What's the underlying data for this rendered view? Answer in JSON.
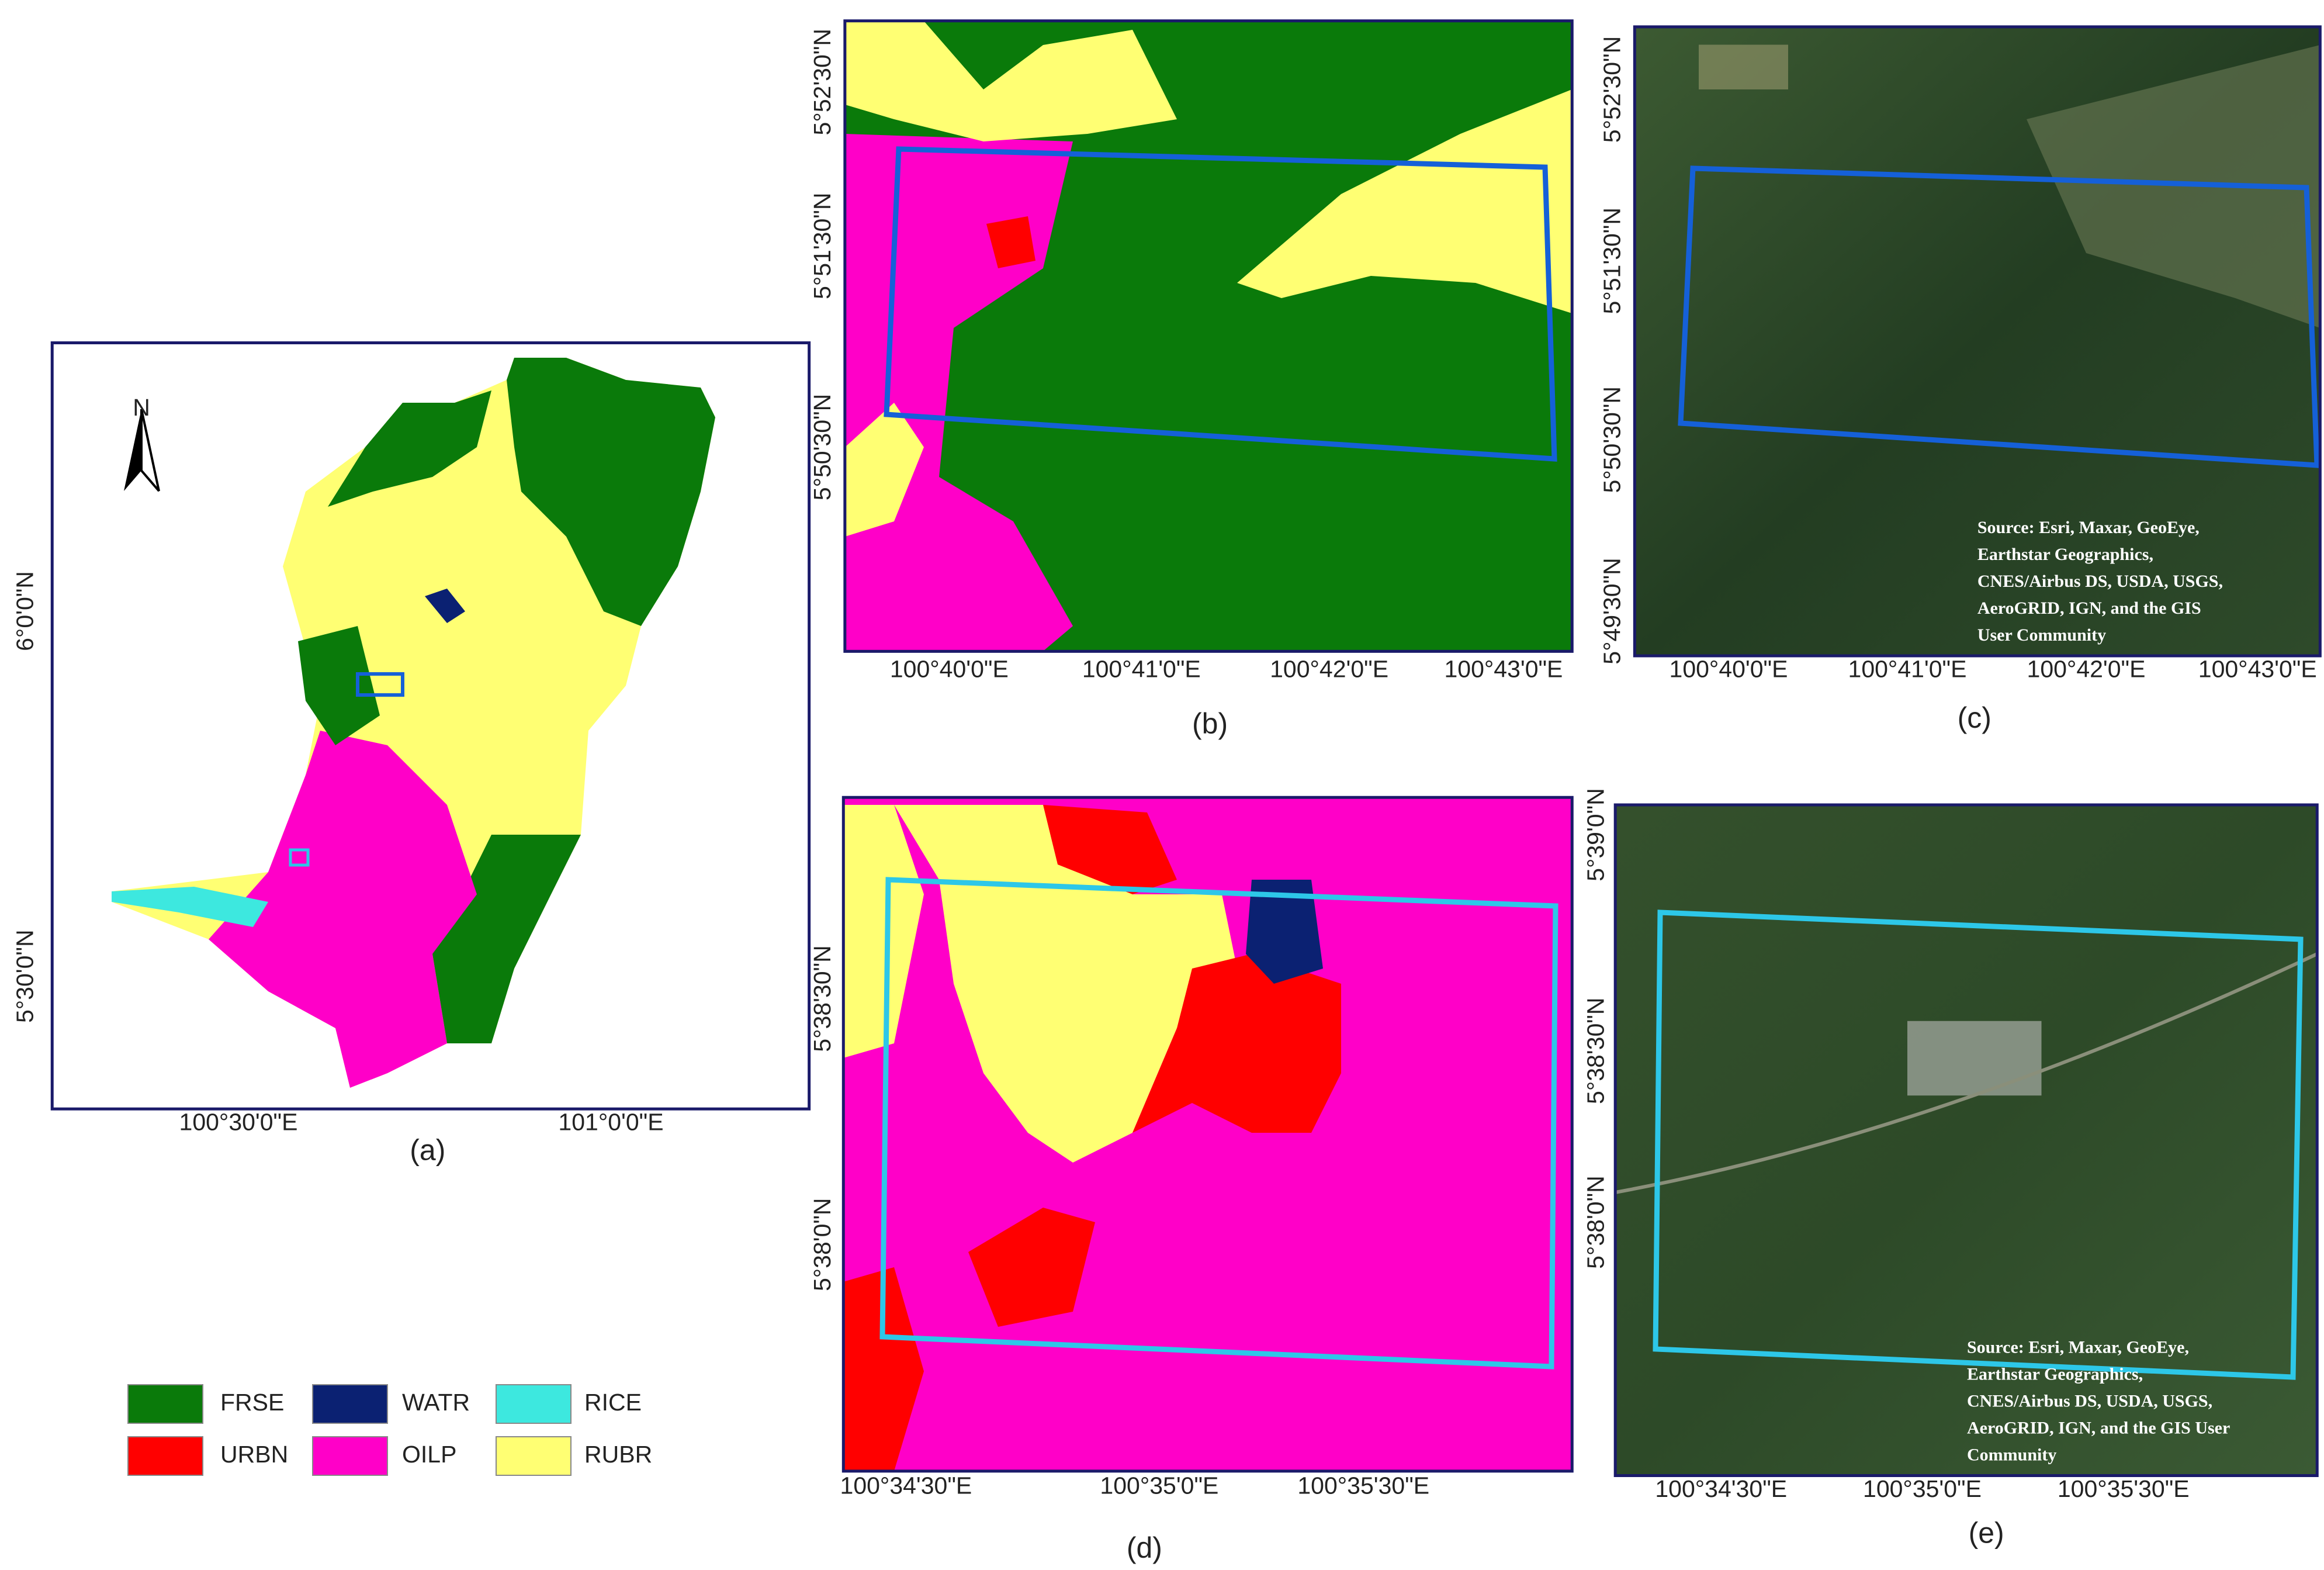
{
  "panels": [
    {
      "label": "(a)",
      "north": "N",
      "x_ticks": [
        "100°30'0\"E",
        "101°0'0\"E"
      ],
      "y_ticks": [
        "6°0'0\"N",
        "5°30'0\"N"
      ]
    },
    {
      "label": "(b)",
      "x_ticks": [
        "100°40'0\"E",
        "100°41'0\"E",
        "100°42'0\"E",
        "100°43'0\"E"
      ],
      "y_ticks": [
        "5°52'30\"N",
        "5°51'30\"N",
        "5°50'30\"N"
      ]
    },
    {
      "label": "(c)",
      "x_ticks": [
        "100°40'0\"E",
        "100°41'0\"E",
        "100°42'0\"E",
        "100°43'0\"E"
      ],
      "y_ticks": [
        "5°52'30\"N",
        "5°51'30\"N",
        "5°50'30\"N",
        "5°49'30\"N"
      ],
      "attribution": [
        "Source: Esri, Maxar, GeoEye,",
        "Earthstar Geographics,",
        "CNES/Airbus DS, USDA, USGS,",
        "AeroGRID, IGN, and the GIS",
        "User Community"
      ]
    },
    {
      "label": "(d)",
      "x_ticks": [
        "100°34'30\"E",
        "100°35'0\"E",
        "100°35'30\"E"
      ],
      "y_ticks": [
        "5°38'30\"N",
        "5°38'0\"N"
      ]
    },
    {
      "label": "(e)",
      "x_ticks": [
        "100°34'30\"E",
        "100°35'0\"E",
        "100°35'30\"E"
      ],
      "y_ticks": [
        "5°39'0\"N",
        "5°38'30\"N",
        "5°38'0\"N"
      ],
      "attribution": [
        "Source: Esri, Maxar, GeoEye,",
        "Earthstar Geographics,",
        "CNES/Airbus DS, USDA, USGS,",
        "AeroGRID, IGN, and the GIS User",
        "Community"
      ]
    }
  ],
  "legend": [
    {
      "name": "FRSE",
      "color": "#0a7a0a"
    },
    {
      "name": "WATR",
      "color": "#0b2172"
    },
    {
      "name": "RICE",
      "color": "#3de8df"
    },
    {
      "name": "URBN",
      "color": "#ff0000"
    },
    {
      "name": "OILP",
      "color": "#ff00c8"
    },
    {
      "name": "RUBR",
      "color": "#ffff73"
    }
  ]
}
